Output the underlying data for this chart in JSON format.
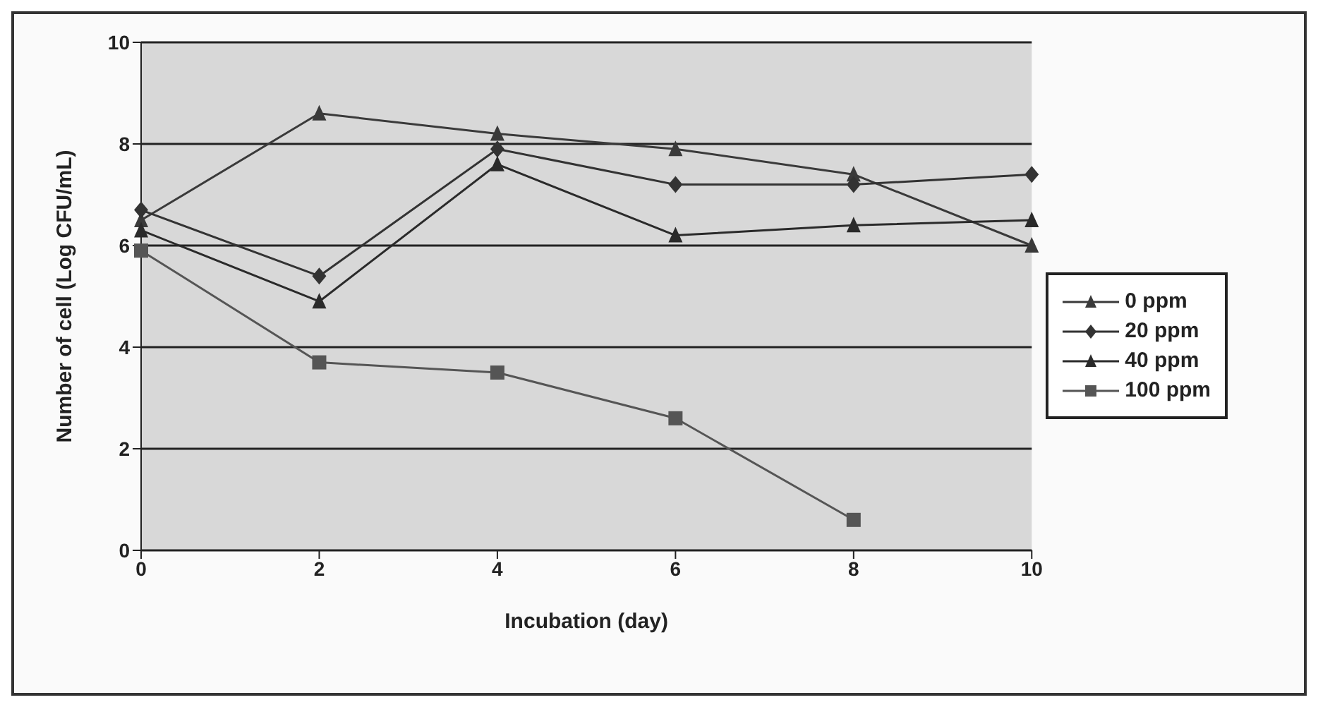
{
  "chart_data": {
    "type": "line",
    "xlabel": "Incubation (day)",
    "ylabel": "Number of cell (Log CFU/mL)",
    "categories": [
      "0",
      "2",
      "4",
      "6",
      "8",
      "10"
    ],
    "ylim": [
      0,
      10
    ],
    "yticks": [
      0,
      2,
      4,
      6,
      8,
      10
    ],
    "grid": "y",
    "legend": "right",
    "series": [
      {
        "name": "0 ppm",
        "color": "#3a3a3a",
        "marker": "triangle",
        "values": [
          6.5,
          8.6,
          8.2,
          7.9,
          7.4,
          6.0
        ]
      },
      {
        "name": "20 ppm",
        "color": "#333333",
        "marker": "diamond",
        "values": [
          6.7,
          5.4,
          7.9,
          7.2,
          7.2,
          7.4
        ]
      },
      {
        "name": "40 ppm",
        "color": "#2a2a2a",
        "marker": "triangle",
        "values": [
          6.3,
          4.9,
          7.6,
          6.2,
          6.4,
          6.5
        ]
      },
      {
        "name": "100 ppm",
        "color": "#555555",
        "marker": "square",
        "values": [
          5.9,
          3.7,
          3.5,
          2.6,
          0.6,
          null
        ]
      }
    ]
  }
}
